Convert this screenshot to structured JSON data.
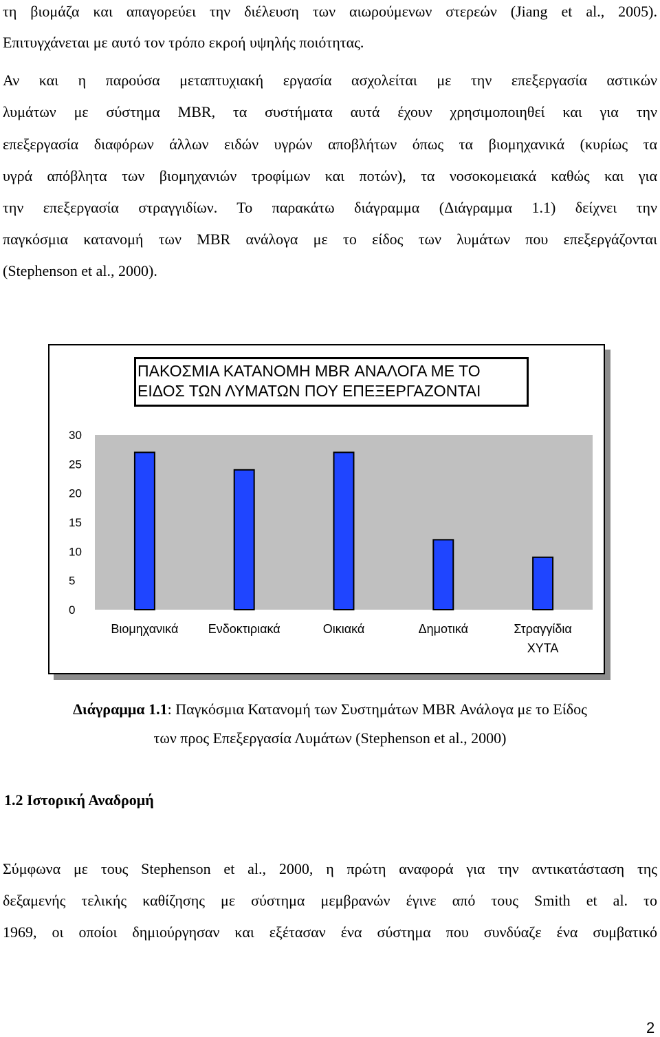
{
  "paragraph1": {
    "lines": [
      "τη βιομάζα και απαγορεύει την διέλευση των αιωρούμενων στερεών (Jiang et al., 2005).",
      "Επιτυγχάνεται με αυτό τον τρόπο εκροή υψηλής ποιότητας."
    ]
  },
  "paragraph2": {
    "lines": [
      "Αν και η παρούσα μεταπτυχιακή εργασία ασχολείται με την επεξεργασία αστικών",
      "λυμάτων με σύστημα MBR, τα συστήματα αυτά έχουν χρησιμοποιηθεί και για την",
      "επεξεργασία διαφόρων άλλων ειδών υγρών αποβλήτων όπως τα βιομηχανικά (κυρίως τα",
      "υγρά απόβλητα των βιομηχανιών τροφίμων και ποτών), τα νοσοκομειακά καθώς και για",
      "την επεξεργασία στραγγιδίων. Το παρακάτω διάγραμμα (Διάγραμμα 1.1) δείχνει την",
      "παγκόσμια κατανομή των MBR ανάλογα με το είδος των λυμάτων που επεξεργάζονται",
      "(Stephenson et al., 2000)."
    ]
  },
  "chart_data": {
    "type": "bar",
    "title_lines": [
      "ΠΑΚΟΣΜΙΑ ΚΑΤΑΝΟΜΗ MBR ΑΝΑΛΟΓΑ ΜΕ ΤΟ",
      "ΕΙΔΟΣ ΤΩΝ ΛΥΜΑΤΩΝ ΠΟΥ ΕΠΕΞΕΡΓΑΖΟΝΤΑΙ"
    ],
    "categories": [
      [
        "Βιομηχανικά"
      ],
      [
        "Ενδοκτιριακά"
      ],
      [
        "Οικιακά"
      ],
      [
        "Δημοτικά"
      ],
      [
        "Στραγγίδια",
        "ΧΥΤΑ"
      ]
    ],
    "values": [
      27,
      24,
      27,
      12,
      9
    ],
    "yticks": [
      "30",
      "25",
      "20",
      "15",
      "10",
      "5",
      "0"
    ],
    "ylim": [
      0,
      30
    ],
    "plot_bg": "#c0c0c0",
    "bar_color": "#1f45ff",
    "grid": false
  },
  "caption": {
    "label": "Διάγραμμα 1.1",
    "line1_rest": ": Παγκόσμια Κατανομή των Συστημάτων MBR Ανάλογα με το Είδος",
    "line2": "των προς Επεξεργασία Λυμάτων (Stephenson et al., 2000)"
  },
  "section": {
    "heading": "1.2 Ιστορική Αναδρομή"
  },
  "paragraph3": {
    "lines": [
      "Σύμφωνα με τους Stephenson et al., 2000, η πρώτη αναφορά για την αντικατάσταση της",
      "δεξαμενής τελικής καθίζησης με σύστημα μεμβρανών έγινε από τους Smith et al. το",
      "1969, οι οποίοι δημιούργησαν και εξέτασαν ένα σύστημα που συνδύαζε ένα συμβατικό"
    ]
  },
  "page_number": "2"
}
